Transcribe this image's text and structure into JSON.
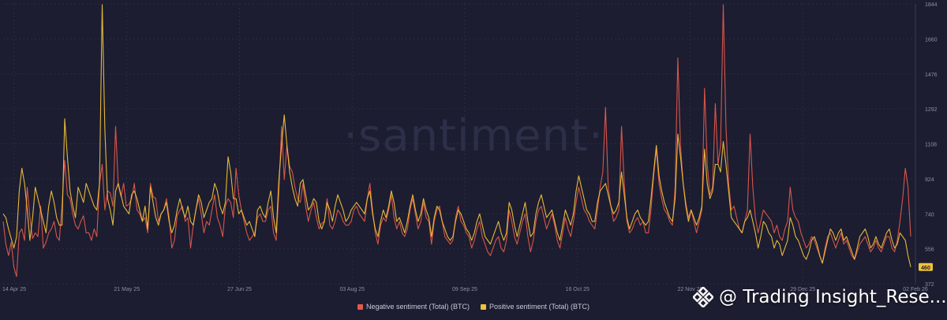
{
  "watermark": "·santiment·",
  "credit": {
    "text": "@ Trading Insight_Rese..."
  },
  "colors": {
    "negative": "#e3584d",
    "positive": "#f0c23a",
    "background": "#1c1d30",
    "grid": "#2b2d44",
    "axis_text": "#8d8fa5"
  },
  "chart_data": {
    "type": "line",
    "x_ticks": [
      "14 Apr 25",
      "21 May 25",
      "27 Jun 25",
      "03 Aug 25",
      "09 Sep 25",
      "16 Oct 25",
      "22 Nov 25",
      "29 Dec 25",
      "02 Feb 26"
    ],
    "y_ticks": [
      "372",
      "556",
      "740",
      "924",
      "1108",
      "1292",
      "1476",
      "1660",
      "1844"
    ],
    "ylim": [
      372,
      1844
    ],
    "grid": true,
    "legend_position": "bottom-center",
    "last_value_label": "460",
    "series": [
      {
        "name": "Negative sentiment (Total) (BTC)",
        "color": "#e3584d",
        "values": [
          700,
          580,
          520,
          590,
          460,
          410,
          640,
          660,
          600,
          880,
          720,
          610,
          640,
          620,
          780,
          560,
          590,
          640,
          660,
          700,
          620,
          600,
          790,
          1020,
          840,
          820,
          740,
          680,
          660,
          700,
          730,
          640,
          640,
          600,
          660,
          620,
          900,
          1000,
          760,
          860,
          850,
          780,
          1200,
          890,
          830,
          900,
          780,
          790,
          820,
          900,
          760,
          740,
          700,
          720,
          640,
          900,
          830,
          820,
          700,
          740,
          760,
          820,
          720,
          560,
          600,
          730,
          760,
          780,
          700,
          720,
          560,
          680,
          760,
          820,
          740,
          640,
          700,
          680,
          760,
          840,
          720,
          680,
          620,
          780,
          820,
          800,
          720,
          980,
          840,
          760,
          700,
          640,
          600,
          620,
          640,
          720,
          740,
          700,
          700,
          760,
          780,
          640,
          600,
          860,
          1200,
          920,
          1100,
          990,
          960,
          880,
          820,
          800,
          900,
          780,
          700,
          760,
          800,
          720,
          660,
          690,
          700,
          820,
          680,
          660,
          700,
          760,
          740,
          700,
          680,
          680,
          700,
          760,
          780,
          740,
          720,
          700,
          820,
          900,
          760,
          640,
          580,
          680,
          720,
          700,
          760,
          840,
          720,
          660,
          700,
          640,
          620,
          660,
          760,
          820,
          740,
          660,
          700,
          800,
          720,
          700,
          580,
          700,
          760,
          780,
          700,
          620,
          600,
          580,
          600,
          720,
          780,
          700,
          680,
          640,
          620,
          560,
          600,
          660,
          700,
          620,
          580,
          540,
          520,
          560,
          600,
          620,
          560,
          540,
          600,
          760,
          700,
          620,
          580,
          640,
          700,
          740,
          620,
          540,
          600,
          700,
          760,
          780,
          720,
          660,
          700,
          740,
          680,
          600,
          560,
          640,
          720,
          660,
          620,
          700,
          800,
          880,
          820,
          760,
          740,
          700,
          680,
          660,
          760,
          880,
          960,
          1300,
          880,
          780,
          700,
          720,
          760,
          1200,
          900,
          700,
          640,
          660,
          700,
          720,
          680,
          700,
          640,
          640,
          760,
          940,
          1080,
          900,
          820,
          760,
          740,
          700,
          680,
          880,
          1560,
          1100,
          900,
          800,
          720,
          760,
          700,
          640,
          700,
          760,
          1400,
          1000,
          840,
          880,
          1320,
          1000,
          1100,
          1840,
          1200,
          900,
          760,
          780,
          720,
          660,
          640,
          700,
          760,
          1160,
          880,
          720,
          640,
          700,
          760,
          740,
          720,
          700,
          640,
          680,
          620,
          600,
          660,
          700,
          880,
          760,
          720,
          700,
          640,
          600,
          560,
          580,
          620,
          600,
          560,
          520,
          480,
          560,
          620,
          640,
          600,
          560,
          600,
          640,
          580,
          600,
          560,
          520,
          500,
          540,
          580,
          600,
          620,
          580,
          540,
          560,
          600,
          560,
          540,
          580,
          620,
          620,
          560,
          540,
          600,
          700,
          820,
          980,
          880,
          620
        ]
      },
      {
        "name": "Positive sentiment (Total) (BTC)",
        "color": "#f0c23a",
        "values": [
          740,
          720,
          660,
          610,
          560,
          620,
          860,
          980,
          900,
          760,
          600,
          720,
          880,
          820,
          760,
          700,
          640,
          780,
          860,
          800,
          720,
          680,
          680,
          1240,
          1040,
          860,
          780,
          720,
          880,
          840,
          800,
          900,
          860,
          820,
          780,
          760,
          900,
          1840,
          1180,
          820,
          760,
          680,
          860,
          900,
          840,
          780,
          760,
          740,
          840,
          860,
          820,
          760,
          700,
          780,
          660,
          880,
          800,
          720,
          680,
          740,
          760,
          800,
          700,
          640,
          680,
          760,
          820,
          760,
          720,
          780,
          700,
          680,
          760,
          840,
          800,
          720,
          760,
          800,
          820,
          900,
          860,
          780,
          740,
          800,
          1040,
          960,
          820,
          820,
          740,
          760,
          720,
          680,
          700,
          660,
          620,
          760,
          780,
          740,
          720,
          800,
          860,
          720,
          640,
          920,
          1100,
          1260,
          1100,
          960,
          880,
          820,
          780,
          900,
          920,
          840,
          760,
          780,
          820,
          800,
          700,
          660,
          700,
          800,
          760,
          700,
          780,
          840,
          800,
          760,
          700,
          720,
          760,
          780,
          800,
          780,
          760,
          740,
          820,
          860,
          740,
          660,
          620,
          700,
          760,
          720,
          780,
          860,
          800,
          700,
          720,
          680,
          640,
          700,
          780,
          840,
          760,
          700,
          740,
          820,
          760,
          720,
          620,
          720,
          780,
          760,
          700,
          660,
          620,
          600,
          620,
          700,
          760,
          740,
          700,
          660,
          640,
          600,
          640,
          700,
          740,
          680,
          620,
          600,
          580,
          620,
          660,
          700,
          640,
          600,
          640,
          800,
          760,
          680,
          620,
          680,
          740,
          800,
          700,
          620,
          640,
          740,
          800,
          840,
          780,
          720,
          740,
          760,
          700,
          640,
          600,
          680,
          760,
          720,
          680,
          740,
          860,
          940,
          880,
          820,
          760,
          740,
          700,
          700,
          800,
          860,
          880,
          900,
          840,
          780,
          740,
          760,
          800,
          960,
          840,
          720,
          660,
          700,
          740,
          760,
          720,
          700,
          680,
          700,
          820,
          960,
          1100,
          940,
          860,
          800,
          760,
          720,
          700,
          820,
          1160,
          1040,
          900,
          780,
          700,
          760,
          720,
          680,
          720,
          780,
          1080,
          900,
          820,
          860,
          1000,
          1000,
          960,
          1120,
          1000,
          860,
          720,
          700,
          680,
          660,
          640,
          700,
          720,
          760,
          700,
          640,
          560,
          620,
          700,
          680,
          640,
          620,
          560,
          600,
          580,
          520,
          560,
          600,
          720,
          680,
          620,
          600,
          560,
          520,
          500,
          540,
          600,
          620,
          580,
          520,
          480,
          540,
          600,
          660,
          640,
          600,
          640,
          660,
          600,
          620,
          580,
          540,
          500,
          560,
          620,
          640,
          660,
          620,
          560,
          580,
          620,
          580,
          560,
          600,
          640,
          660,
          600,
          560,
          580,
          640,
          620,
          600,
          520,
          460
        ]
      }
    ]
  }
}
